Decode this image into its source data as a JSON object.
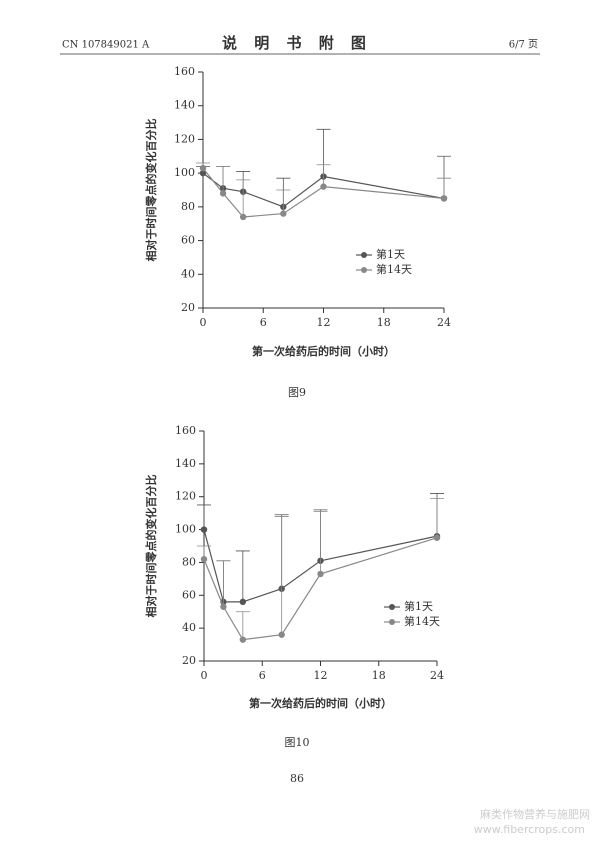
{
  "header": {
    "left": "CN 107849021 A",
    "title": "说 明 书 附 图",
    "right": "6/7 页"
  },
  "chart_data": [
    {
      "type": "line",
      "caption": "图9",
      "x_label": "第一次给药后的时间（小时）",
      "y_label": "相对于时间零点的变化百分比",
      "x": [
        0,
        2,
        4,
        8,
        12,
        24
      ],
      "xlim": [
        0,
        24
      ],
      "xticks": [
        0,
        6,
        12,
        18,
        24
      ],
      "ylim": [
        20,
        160
      ],
      "yticks": [
        20,
        40,
        60,
        80,
        100,
        120,
        140,
        160
      ],
      "series": [
        {
          "name": "第1天",
          "color": "#555555",
          "values": [
            100,
            91,
            89,
            80,
            98,
            85
          ],
          "errors": [
            4,
            13,
            12,
            17,
            28,
            25
          ]
        },
        {
          "name": "第14天",
          "color": "#888888",
          "values": [
            103,
            88,
            74,
            76,
            92,
            85
          ],
          "errors": [
            3,
            16,
            22,
            14,
            13,
            12
          ]
        }
      ]
    },
    {
      "type": "line",
      "caption": "图10",
      "x_label": "第一次给药后的时间（小时）",
      "y_label": "相对于时间零点的变化百分比",
      "x": [
        0,
        2,
        4,
        8,
        12,
        24
      ],
      "xlim": [
        0,
        24
      ],
      "xticks": [
        0,
        6,
        12,
        18,
        24
      ],
      "ylim": [
        20,
        160
      ],
      "yticks": [
        20,
        40,
        60,
        80,
        100,
        120,
        140,
        160
      ],
      "series": [
        {
          "name": "第1天",
          "color": "#555555",
          "values": [
            100,
            56,
            56,
            64,
            81,
            96
          ],
          "errors": [
            15,
            25,
            31,
            45,
            31,
            26
          ]
        },
        {
          "name": "第14天",
          "color": "#888888",
          "values": [
            82,
            53,
            33,
            36,
            73,
            95
          ],
          "errors": [
            8,
            28,
            17,
            72,
            38,
            24
          ]
        }
      ]
    }
  ],
  "page_number": "86",
  "watermark": {
    "line1": "麻类作物营养与施肥网",
    "line2": "www.fibercrops.com"
  }
}
